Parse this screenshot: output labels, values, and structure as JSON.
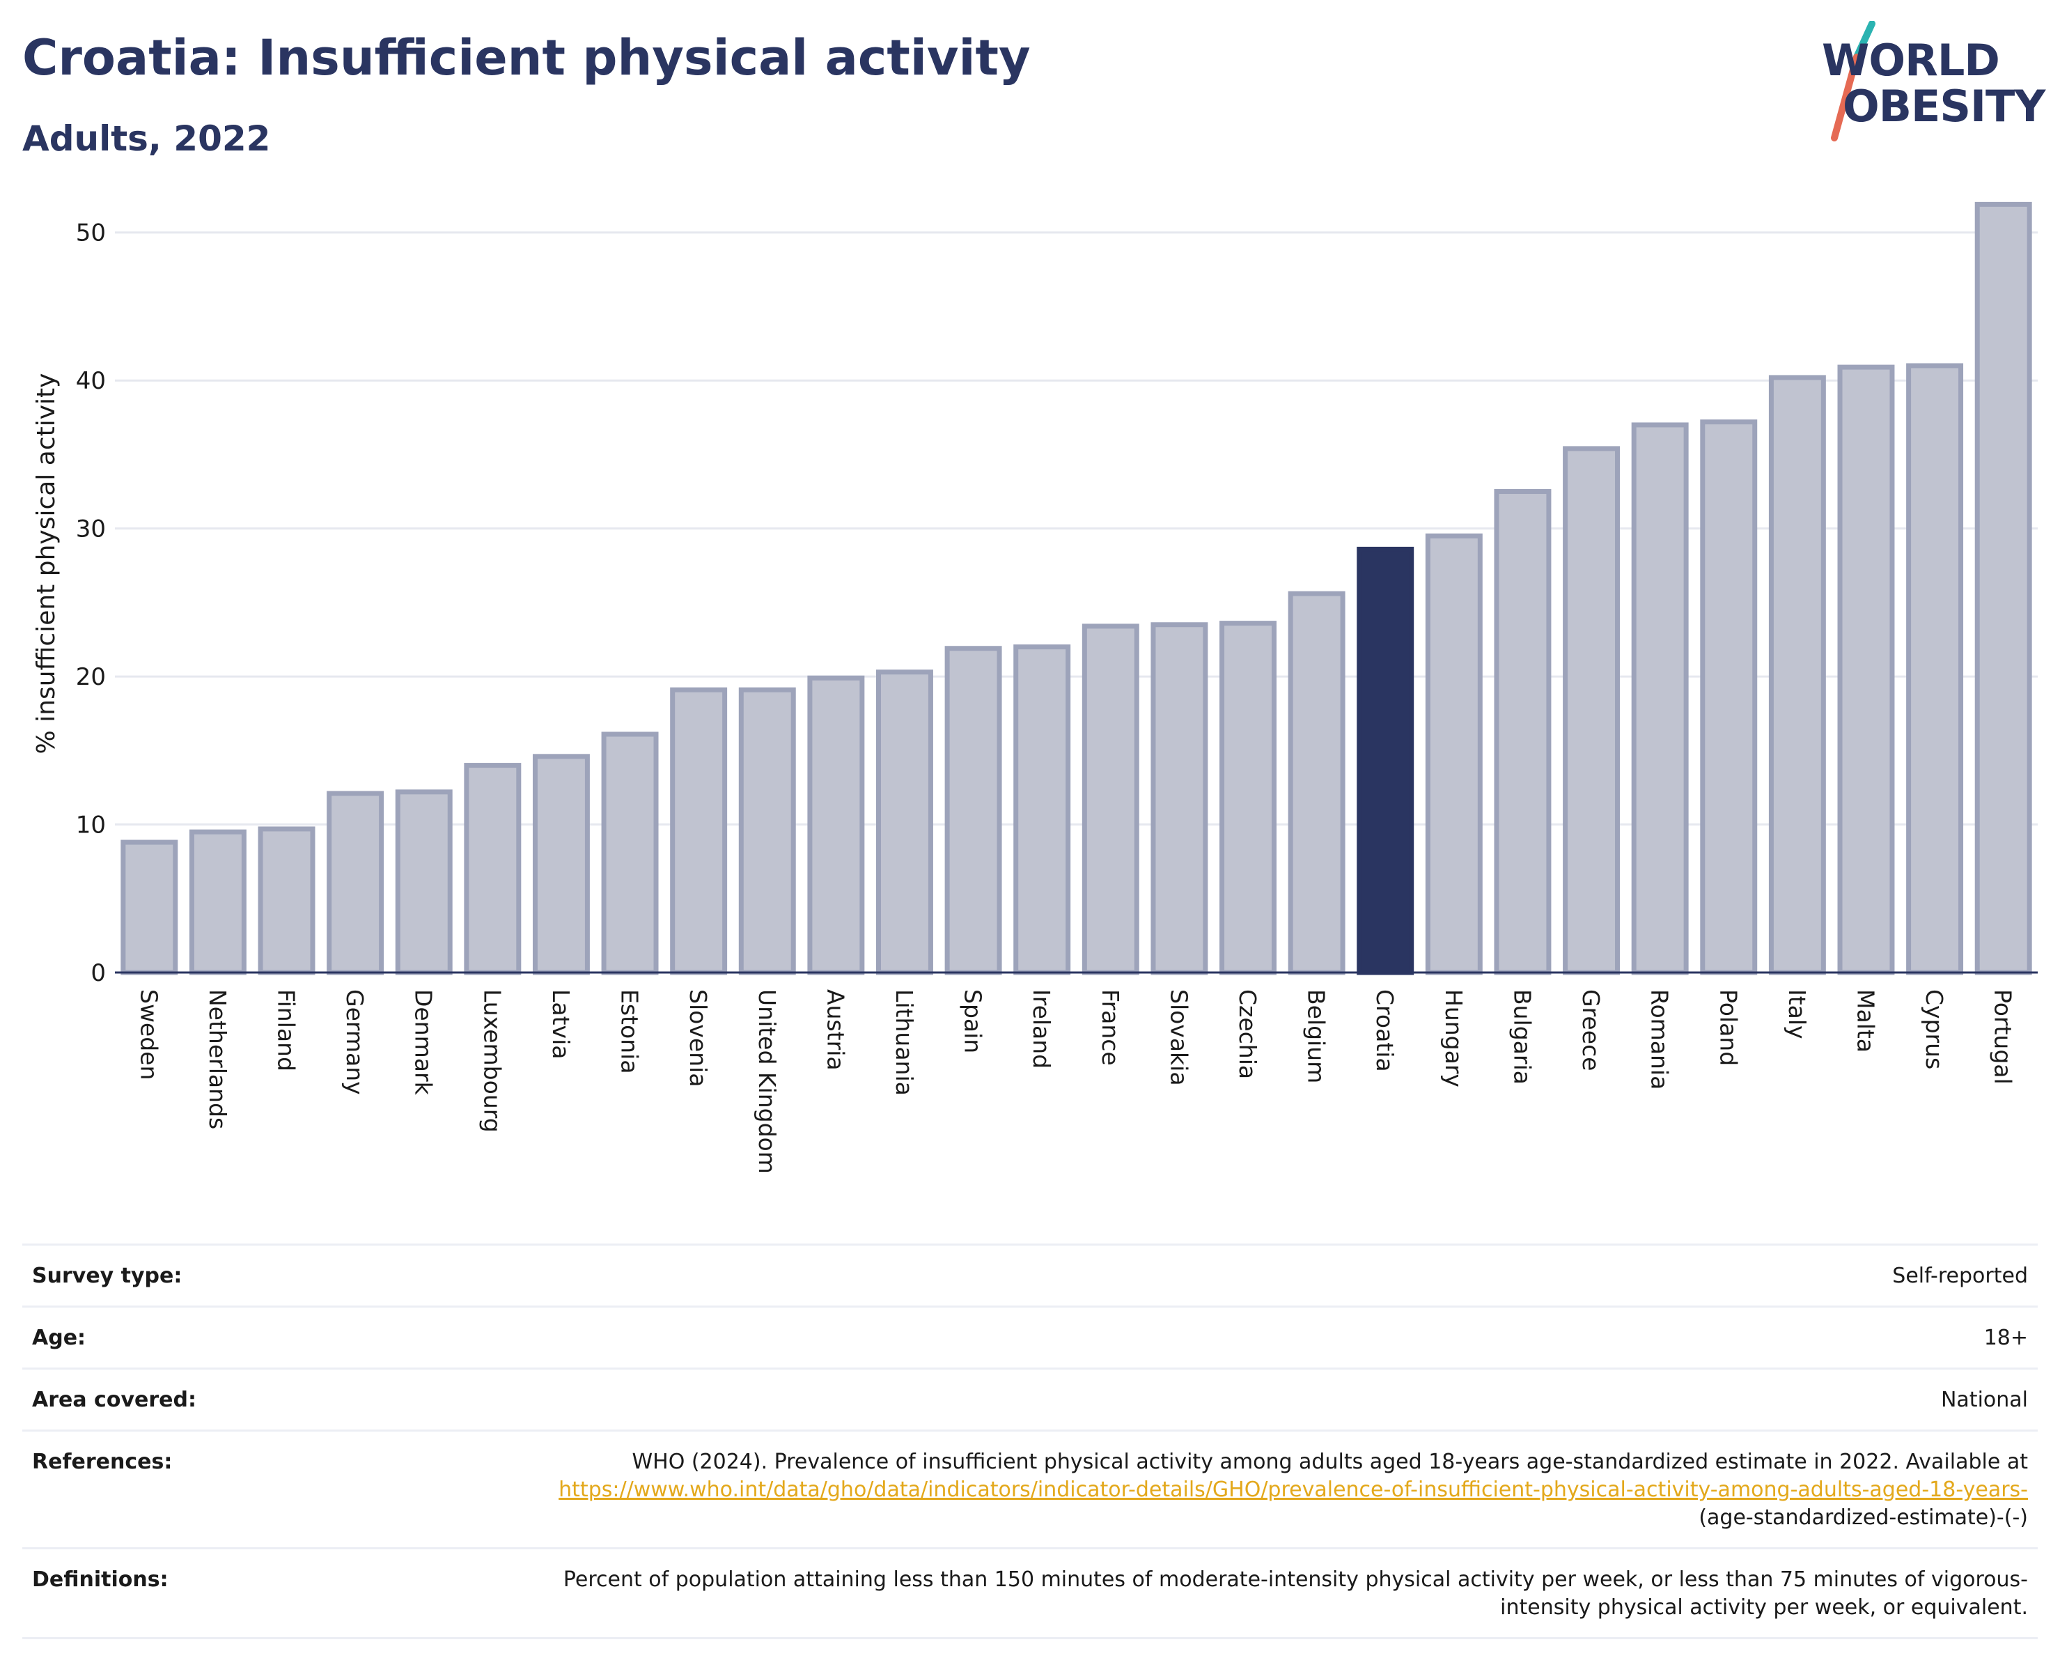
{
  "header": {
    "title": "Croatia: Insufficient physical activity",
    "subtitle": "Adults, 2022"
  },
  "logo": {
    "line1": "WORLD",
    "line2": "OBESITY",
    "slash_colors": [
      "#2bb3b1",
      "#e56a54"
    ]
  },
  "colors": {
    "highlight": "#2a3561",
    "bar_fill": "#c0c3d0",
    "bar_stroke": "#9da3ba",
    "grid": "#e6e8ef",
    "axis": "#2a3561",
    "link": "#e3a81b"
  },
  "chart_data": {
    "type": "bar",
    "title": "Croatia: Insufficient physical activity",
    "subtitle": "Adults, 2022",
    "xlabel": "",
    "ylabel": "% insufficient physical activity",
    "ylim": [
      0,
      53
    ],
    "yticks": [
      0,
      10,
      20,
      30,
      40,
      50
    ],
    "grid": true,
    "highlight": "Croatia",
    "categories": [
      "Sweden",
      "Netherlands",
      "Finland",
      "Germany",
      "Denmark",
      "Luxembourg",
      "Latvia",
      "Estonia",
      "Slovenia",
      "United Kingdom",
      "Austria",
      "Lithuania",
      "Spain",
      "Ireland",
      "France",
      "Slovakia",
      "Czechia",
      "Belgium",
      "Croatia",
      "Hungary",
      "Bulgaria",
      "Greece",
      "Romania",
      "Poland",
      "Italy",
      "Malta",
      "Cyprus",
      "Portugal"
    ],
    "values": [
      8.8,
      9.5,
      9.7,
      12.1,
      12.2,
      14.0,
      14.6,
      16.1,
      19.1,
      19.1,
      19.9,
      20.3,
      21.9,
      22.0,
      23.4,
      23.5,
      23.6,
      25.6,
      28.6,
      29.5,
      32.5,
      35.4,
      37.0,
      37.2,
      40.2,
      40.9,
      41.0,
      51.9
    ]
  },
  "metadata": [
    {
      "label": "Survey type:",
      "value": "Self-reported"
    },
    {
      "label": "Age:",
      "value": "18+"
    },
    {
      "label": "Area covered:",
      "value": "National"
    },
    {
      "label": "References:",
      "value_prefix": "WHO (2024). Prevalence of insufficient physical activity among adults aged 18-years age-standardized estimate in 2022. Available at ",
      "link": "https://www.who.int/data/gho/data/indicators/indicator-details/GHO/prevalence-of-insufficient-physical-activity-among-adults-aged-18-years-",
      "value_suffix": "(age-standardized-estimate)-(-)"
    },
    {
      "label": "Definitions:",
      "value": "Percent of population attaining less than 150 minutes of moderate-intensity physical activity per week, or less than 75 minutes of vigorous-intensity physical activity per week, or equivalent."
    }
  ]
}
